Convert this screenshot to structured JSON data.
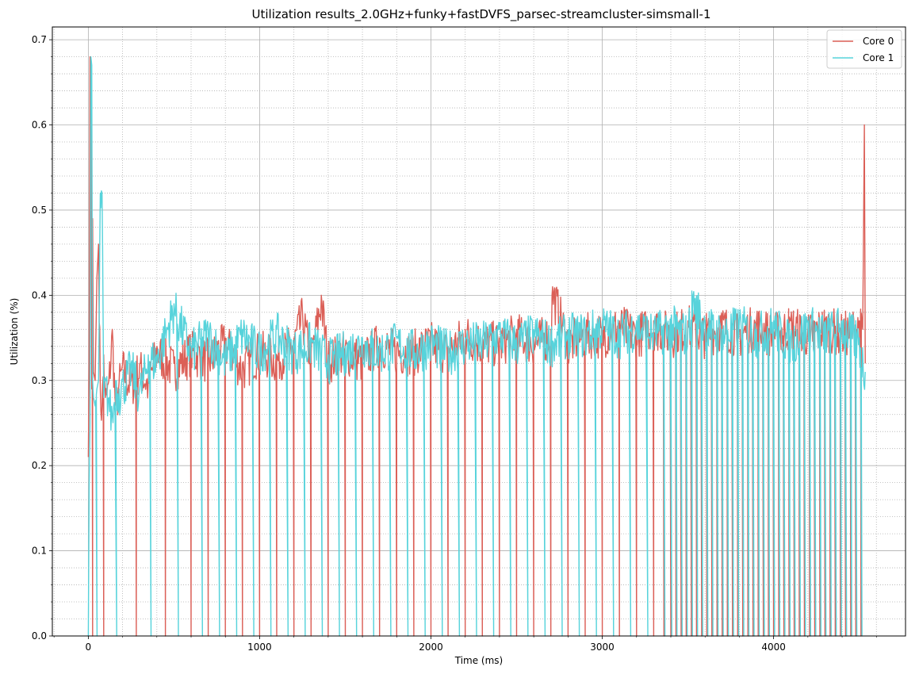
{
  "chart_data": {
    "type": "line",
    "title": "Utilization results_2.0GHz+funky+fastDVFS_parsec-streamcluster-simsmall-1",
    "xlabel": "Time (ms)",
    "ylabel": "Utilization (%)",
    "xlim": [
      -210,
      4770
    ],
    "ylim": [
      0.0,
      0.715
    ],
    "x_ticks": [
      0,
      1000,
      2000,
      3000,
      4000
    ],
    "x_tick_labels": [
      "0",
      "1000",
      "2000",
      "3000",
      "4000"
    ],
    "y_ticks": [
      0.0,
      0.1,
      0.2,
      0.3,
      0.4,
      0.5,
      0.6,
      0.7
    ],
    "y_tick_labels": [
      "0.0",
      "0.1",
      "0.2",
      "0.3",
      "0.4",
      "0.5",
      "0.6",
      "0.7"
    ],
    "grid": "major solid, minor dotted",
    "legend_position": "top-right",
    "series": [
      {
        "name": "Core 0",
        "color": "#db5f57",
        "x": [
          0,
          5,
          10,
          15,
          20,
          25,
          30,
          40,
          50,
          60,
          70,
          80,
          90,
          100,
          120,
          140,
          160,
          180,
          200,
          250,
          300,
          350,
          400,
          500,
          600,
          700,
          800,
          900,
          1000,
          1100,
          1200,
          1250,
          1300,
          1360,
          1400,
          1500,
          1600,
          1700,
          1800,
          1900,
          2000,
          2100,
          2200,
          2300,
          2400,
          2500,
          2600,
          2700,
          2710,
          2800,
          2900,
          3000,
          3100,
          3200,
          3300,
          3400,
          3500,
          3600,
          3700,
          3800,
          3900,
          4000,
          4100,
          4200,
          4300,
          4400,
          4500,
          4520,
          4530,
          4535
        ],
        "y": [
          0.21,
          0.32,
          0.68,
          0.65,
          0.29,
          0.49,
          0.31,
          0.3,
          0.42,
          0.46,
          0.29,
          0.27,
          0.33,
          0.28,
          0.3,
          0.36,
          0.27,
          0.3,
          0.32,
          0.3,
          0.32,
          0.3,
          0.34,
          0.32,
          0.34,
          0.33,
          0.35,
          0.32,
          0.34,
          0.33,
          0.35,
          0.38,
          0.33,
          0.4,
          0.33,
          0.34,
          0.33,
          0.35,
          0.34,
          0.34,
          0.35,
          0.34,
          0.36,
          0.35,
          0.35,
          0.36,
          0.35,
          0.36,
          0.41,
          0.35,
          0.36,
          0.36,
          0.37,
          0.36,
          0.37,
          0.36,
          0.37,
          0.36,
          0.37,
          0.36,
          0.37,
          0.36,
          0.37,
          0.36,
          0.37,
          0.36,
          0.37,
          0.36,
          0.6,
          0.32
        ]
      },
      {
        "name": "Core 1",
        "color": "#57d3db",
        "x": [
          0,
          5,
          10,
          15,
          20,
          25,
          30,
          40,
          50,
          60,
          70,
          80,
          90,
          100,
          120,
          140,
          160,
          180,
          200,
          250,
          300,
          350,
          400,
          450,
          500,
          600,
          700,
          800,
          900,
          1000,
          1100,
          1200,
          1300,
          1400,
          1500,
          1600,
          1700,
          1800,
          1900,
          2000,
          2100,
          2200,
          2300,
          2400,
          2500,
          2600,
          2700,
          2800,
          2900,
          3000,
          3100,
          3200,
          3300,
          3400,
          3500,
          3530,
          3600,
          3700,
          3800,
          3900,
          4000,
          4100,
          4200,
          4300,
          4400,
          4500,
          4535
        ],
        "y": [
          0.0,
          0.18,
          0.25,
          0.68,
          0.67,
          0.3,
          0.28,
          0.27,
          0.29,
          0.3,
          0.52,
          0.52,
          0.28,
          0.3,
          0.28,
          0.26,
          0.3,
          0.29,
          0.3,
          0.32,
          0.29,
          0.33,
          0.33,
          0.36,
          0.39,
          0.34,
          0.36,
          0.33,
          0.36,
          0.34,
          0.36,
          0.34,
          0.35,
          0.33,
          0.34,
          0.35,
          0.34,
          0.35,
          0.34,
          0.35,
          0.34,
          0.35,
          0.35,
          0.36,
          0.35,
          0.36,
          0.35,
          0.36,
          0.36,
          0.37,
          0.36,
          0.37,
          0.36,
          0.37,
          0.36,
          0.4,
          0.37,
          0.36,
          0.37,
          0.36,
          0.37,
          0.35,
          0.37,
          0.36,
          0.37,
          0.35,
          0.31
        ]
      }
    ],
    "dropouts_to_zero_x": [
      25,
      45,
      90,
      160,
      280,
      360,
      450,
      520,
      600,
      660,
      700,
      760,
      800,
      860,
      900,
      960,
      1000,
      1060,
      1100,
      1160,
      1200,
      1260,
      1300,
      1360,
      1400,
      1460,
      1500,
      1560,
      1600,
      1660,
      1700,
      1760,
      1800,
      1860,
      1900,
      1960,
      2000,
      2060,
      2100,
      2160,
      2200,
      2260,
      2300,
      2360,
      2400,
      2460,
      2500,
      2560,
      2600,
      2660,
      2700,
      2760,
      2800,
      2860,
      2900,
      2960,
      3000,
      3060,
      3100,
      3160,
      3200,
      3260,
      3300,
      3360,
      3400,
      3430,
      3460,
      3490,
      3520,
      3550,
      3580,
      3610,
      3640,
      3670,
      3700,
      3730,
      3760,
      3790,
      3820,
      3850,
      3880,
      3910,
      3940,
      3970,
      4000,
      4030,
      4060,
      4090,
      4120,
      4150,
      4180,
      4210,
      4240,
      4270,
      4300,
      4330,
      4360,
      4390,
      4420,
      4450,
      4480,
      4510
    ]
  }
}
